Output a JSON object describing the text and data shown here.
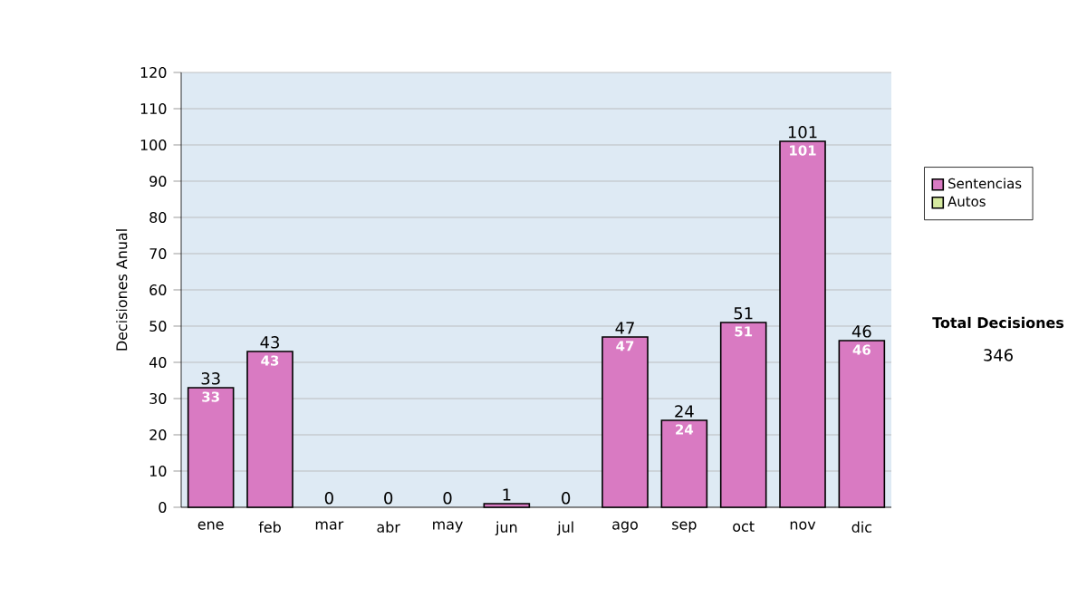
{
  "chart_data": {
    "type": "bar",
    "stacked": true,
    "ylabel": "Decisiones Anual",
    "categories": [
      "ene",
      "feb",
      "mar",
      "abr",
      "may",
      "jun",
      "jul",
      "ago",
      "sep",
      "oct",
      "nov",
      "dic"
    ],
    "series": [
      {
        "name": "Sentencias",
        "color": "#d97ac2",
        "values": [
          33,
          43,
          0,
          0,
          0,
          1,
          0,
          47,
          24,
          51,
          101,
          46
        ],
        "value_labels": [
          "33",
          "43",
          null,
          null,
          null,
          null,
          null,
          "47",
          "24",
          "51",
          "101",
          "46"
        ]
      },
      {
        "name": "Autos",
        "color": "#d6eaa0",
        "values": [
          0,
          0,
          0,
          0,
          0,
          0,
          0,
          0,
          0,
          0,
          0,
          0
        ]
      }
    ],
    "totals": [
      "33",
      "43",
      "0",
      "0",
      "0",
      "1",
      "0",
      "47",
      "24",
      "51",
      "101",
      "46"
    ],
    "ylim": [
      0,
      120
    ],
    "yticks": [
      0,
      10,
      20,
      30,
      40,
      50,
      60,
      70,
      80,
      90,
      100,
      110,
      120
    ],
    "grid": "y",
    "legend": "right",
    "annotations": [
      "Total Decisiones",
      "346"
    ]
  }
}
